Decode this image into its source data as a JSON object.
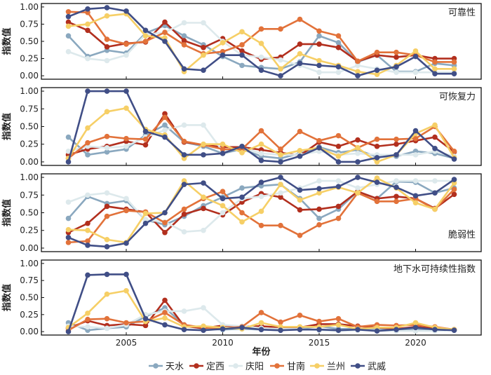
{
  "chart_data": {
    "type": "line",
    "x": [
      2002,
      2003,
      2004,
      2005,
      2006,
      2007,
      2008,
      2009,
      2010,
      2011,
      2012,
      2013,
      2014,
      2015,
      2016,
      2017,
      2018,
      2019,
      2020,
      2021,
      2022
    ],
    "xlabel": "年份",
    "xticks": [
      2005,
      2010,
      2015,
      2020
    ],
    "xlim": [
      2000.6,
      2023.4
    ],
    "ylabel": "指数值",
    "ylim": [
      -0.05,
      1.05
    ],
    "yticks": [
      "0.00",
      "0.25",
      "0.50",
      "0.75",
      "1.00"
    ],
    "legend": [
      "天水",
      "定西",
      "庆阳",
      "甘南",
      "兰州",
      "武威"
    ],
    "colors": [
      "#8aa8bf",
      "#b22f1e",
      "#dde9ec",
      "#e2723a",
      "#f6cf66",
      "#404e86"
    ],
    "panels": [
      {
        "title": "可靠性",
        "series": [
          {
            "name": "天水",
            "values": [
              0.58,
              0.28,
              0.37,
              0.33,
              0.62,
              0.73,
              0.58,
              0.45,
              0.28,
              0.15,
              0.12,
              0.1,
              0.2,
              0.58,
              0.48,
              0.2,
              0.3,
              0.06,
              0.06,
              0.18,
              0.15
            ]
          },
          {
            "name": "定西",
            "values": [
              0.78,
              0.66,
              0.42,
              0.47,
              0.49,
              0.78,
              0.51,
              0.41,
              0.54,
              0.36,
              0.24,
              0.27,
              0.46,
              0.46,
              0.41,
              0.21,
              0.3,
              0.27,
              0.3,
              0.25,
              0.25
            ]
          },
          {
            "name": "庆阳",
            "values": [
              0.35,
              0.25,
              0.22,
              0.3,
              0.6,
              0.63,
              0.77,
              0.77,
              0.5,
              0.3,
              0.27,
              0.23,
              0.15,
              0.05,
              0.05,
              0.15,
              0.1,
              0.05,
              0.05,
              0.05,
              0.05
            ]
          },
          {
            "name": "甘南",
            "values": [
              0.93,
              0.92,
              0.53,
              0.46,
              0.5,
              0.63,
              0.45,
              0.32,
              0.35,
              0.45,
              0.68,
              0.68,
              0.82,
              0.65,
              0.58,
              0.21,
              0.34,
              0.34,
              0.3,
              0.2,
              0.2
            ]
          },
          {
            "name": "兰州",
            "values": [
              0.72,
              0.75,
              0.87,
              0.9,
              0.58,
              0.55,
              0.06,
              0.3,
              0.48,
              0.64,
              0.47,
              0.1,
              0.32,
              0.22,
              0.15,
              0.06,
              0.02,
              0.15,
              0.36,
              0.1,
              0.1
            ]
          },
          {
            "name": "武威",
            "values": [
              0.86,
              0.97,
              0.99,
              0.94,
              0.66,
              0.5,
              0.1,
              0.08,
              0.3,
              0.3,
              0.08,
              0.0,
              0.18,
              0.15,
              0.13,
              0.0,
              0.08,
              0.13,
              0.28,
              0.03,
              0.03
            ]
          }
        ]
      },
      {
        "title": "可恢复力",
        "series": [
          {
            "name": "天水",
            "values": [
              0.35,
              0.1,
              0.14,
              0.18,
              0.38,
              0.52,
              0.28,
              0.22,
              0.12,
              0.18,
              0.08,
              0.05,
              0.12,
              0.21,
              0.13,
              0.17,
              0.07,
              0.08,
              0.15,
              0.12,
              0.05
            ]
          },
          {
            "name": "定西",
            "values": [
              0.1,
              0.18,
              0.22,
              0.29,
              0.24,
              0.68,
              0.28,
              0.24,
              0.21,
              0.21,
              0.17,
              0.13,
              0.09,
              0.28,
              0.22,
              0.31,
              0.22,
              0.25,
              0.3,
              0.35,
              0.14
            ]
          },
          {
            "name": "庆阳",
            "values": [
              0.15,
              0.22,
              0.2,
              0.22,
              0.35,
              0.45,
              0.52,
              0.52,
              0.15,
              0.2,
              0.12,
              0.1,
              0.1,
              0.15,
              0.1,
              0.12,
              0.1,
              0.1,
              0.1,
              0.15,
              0.08
            ]
          },
          {
            "name": "甘南",
            "values": [
              0.05,
              0.27,
              0.36,
              0.33,
              0.32,
              0.63,
              0.29,
              0.24,
              0.18,
              0.18,
              0.44,
              0.18,
              0.43,
              0.3,
              0.37,
              0.2,
              0.32,
              0.32,
              0.33,
              0.5,
              0.15
            ]
          },
          {
            "name": "兰州",
            "values": [
              0.05,
              0.48,
              0.71,
              0.76,
              0.46,
              0.38,
              0.05,
              0.25,
              0.25,
              0.13,
              0.25,
              0.1,
              0.16,
              0.2,
              0.08,
              0.2,
              0.0,
              0.1,
              0.4,
              0.52,
              0.06
            ]
          },
          {
            "name": "武威",
            "values": [
              0.0,
              1.0,
              1.0,
              1.0,
              0.43,
              0.35,
              0.1,
              0.1,
              0.12,
              0.22,
              0.02,
              0.0,
              0.08,
              0.2,
              0.0,
              0.0,
              0.06,
              0.1,
              0.44,
              0.19,
              0.04
            ]
          }
        ]
      },
      {
        "title": "脆弱性",
        "series": [
          {
            "name": "天水",
            "values": [
              0.42,
              0.73,
              0.63,
              0.67,
              0.4,
              0.33,
              0.45,
              0.6,
              0.72,
              0.85,
              0.88,
              0.9,
              0.7,
              0.42,
              0.55,
              0.8,
              0.7,
              0.94,
              0.93,
              0.78,
              0.85
            ]
          },
          {
            "name": "定西",
            "values": [
              0.22,
              0.35,
              0.59,
              0.55,
              0.51,
              0.22,
              0.48,
              0.56,
              0.47,
              0.65,
              0.77,
              0.72,
              0.54,
              0.55,
              0.59,
              0.8,
              0.7,
              0.73,
              0.7,
              0.56,
              0.76
            ]
          },
          {
            "name": "庆阳",
            "values": [
              0.65,
              0.75,
              0.78,
              0.7,
              0.4,
              0.37,
              0.23,
              0.25,
              0.5,
              0.7,
              0.73,
              0.78,
              0.85,
              0.95,
              0.95,
              0.85,
              0.9,
              0.95,
              0.95,
              0.95,
              0.95
            ]
          },
          {
            "name": "甘南",
            "values": [
              0.08,
              0.1,
              0.45,
              0.53,
              0.51,
              0.36,
              0.55,
              0.7,
              0.8,
              0.5,
              0.32,
              0.32,
              0.18,
              0.33,
              0.42,
              0.78,
              0.66,
              0.66,
              0.7,
              0.55,
              0.83
            ]
          },
          {
            "name": "兰州",
            "values": [
              0.26,
              0.25,
              0.12,
              0.08,
              0.49,
              0.5,
              0.95,
              0.72,
              0.6,
              0.37,
              0.52,
              0.9,
              0.68,
              0.78,
              0.86,
              0.78,
              0.99,
              0.85,
              0.64,
              0.55,
              0.92
            ]
          },
          {
            "name": "武威",
            "values": [
              0.15,
              0.04,
              0.02,
              0.07,
              0.35,
              0.5,
              0.9,
              0.92,
              0.7,
              0.72,
              0.93,
              1.0,
              0.82,
              0.84,
              0.87,
              1.0,
              0.93,
              0.86,
              0.74,
              0.78,
              0.97
            ]
          }
        ]
      },
      {
        "title": "地下水可持续性指数",
        "series": [
          {
            "name": "天水",
            "values": [
              0.13,
              0.02,
              0.05,
              0.07,
              0.22,
              0.35,
              0.1,
              0.04,
              0.03,
              0.04,
              0.03,
              0.02,
              0.04,
              0.08,
              0.04,
              0.04,
              0.04,
              0.01,
              0.03,
              0.04,
              0.02
            ]
          },
          {
            "name": "定西",
            "values": [
              0.05,
              0.16,
              0.09,
              0.11,
              0.09,
              0.46,
              0.08,
              0.05,
              0.09,
              0.07,
              0.08,
              0.06,
              0.06,
              0.11,
              0.11,
              0.08,
              0.06,
              0.04,
              0.07,
              0.05,
              0.03
            ]
          },
          {
            "name": "庆阳",
            "values": [
              0.08,
              0.07,
              0.05,
              0.1,
              0.25,
              0.3,
              0.3,
              0.35,
              0.1,
              0.08,
              0.05,
              0.04,
              0.04,
              0.02,
              0.01,
              0.02,
              0.02,
              0.01,
              0.01,
              0.01,
              0.02
            ]
          },
          {
            "name": "甘南",
            "values": [
              0.02,
              0.18,
              0.19,
              0.13,
              0.15,
              0.28,
              0.1,
              0.06,
              0.05,
              0.07,
              0.28,
              0.14,
              0.24,
              0.15,
              0.19,
              0.07,
              0.1,
              0.09,
              0.1,
              0.07,
              0.03
            ]
          },
          {
            "name": "兰州",
            "values": [
              0.06,
              0.27,
              0.55,
              0.6,
              0.15,
              0.2,
              0.07,
              0.08,
              0.06,
              0.04,
              0.13,
              0.07,
              0.07,
              0.07,
              0.1,
              0.04,
              0.06,
              0.06,
              0.13,
              0.06,
              0.03
            ]
          },
          {
            "name": "武威",
            "values": [
              0.0,
              0.83,
              0.84,
              0.84,
              0.19,
              0.1,
              0.03,
              0.02,
              0.04,
              0.06,
              0.03,
              0.02,
              0.03,
              0.03,
              0.02,
              0.03,
              0.01,
              0.03,
              0.06,
              0.03,
              0.02
            ]
          }
        ]
      }
    ]
  }
}
